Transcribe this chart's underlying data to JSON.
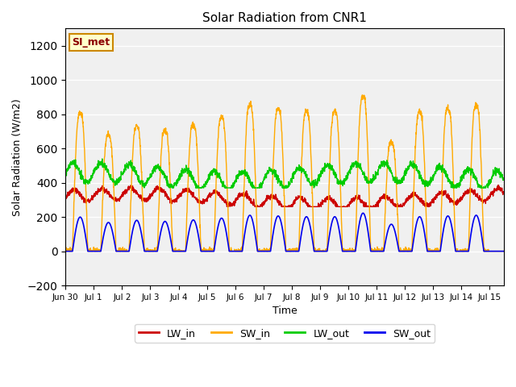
{
  "title": "Solar Radiation from CNR1",
  "xlabel": "Time",
  "ylabel": "Solar Radiation (W/m2)",
  "ylim": [
    -200,
    1300
  ],
  "yticks": [
    -200,
    0,
    200,
    400,
    600,
    800,
    1000,
    1200
  ],
  "colors": {
    "LW_in": "#cc0000",
    "SW_in": "#ffaa00",
    "LW_out": "#00cc00",
    "SW_out": "#0000ee"
  },
  "bg_color": "#f0f0f0",
  "annotation_text": "SI_met",
  "annotation_bg": "#ffffcc",
  "annotation_border": "#cc8800",
  "sw_peaks": [
    950,
    800,
    860,
    830,
    870,
    920,
    1000,
    980,
    960,
    960,
    1060,
    750,
    960,
    980,
    1000
  ],
  "tick_labels": [
    "Jun 30",
    "Jul 1",
    "Jul 2",
    "Jul 3",
    "Jul 4",
    "Jul 5",
    "Jul 6",
    "Jul 7",
    "Jul 8",
    "Jul 9",
    "Jul 10",
    "Jul 11",
    "Jul 12",
    "Jul 13",
    "Jul 14",
    "Jul 15"
  ]
}
